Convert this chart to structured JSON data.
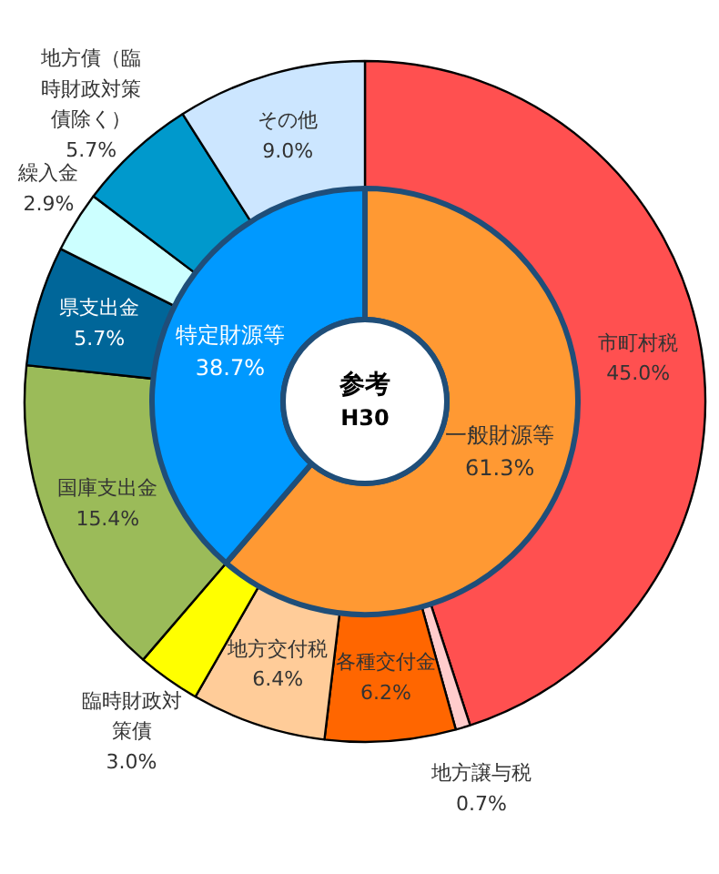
{
  "chart_data": {
    "type": "donut",
    "annotations": [
      "参考",
      "H30"
    ],
    "categories": [
      "市町村税",
      "地方譲与税",
      "各種交付金",
      "地方交付税",
      "臨時財政対策債",
      "国庫支出金",
      "県支出金",
      "繰入金",
      "地方債（臨時財政対策債除く）",
      "その他"
    ],
    "series": [
      {
        "values": [
          45.0,
          0.7,
          6.2,
          6.4,
          3.0,
          15.4,
          5.7,
          2.9,
          5.7,
          9.0
        ],
        "colors": [
          "#ff5050",
          "#ffcccc",
          "#ff6600",
          "#ffcc99",
          "#ffff00",
          "#9bbb59",
          "#006699",
          "#ccffff",
          "#0099cc",
          "#cce6ff"
        ],
        "value_labels": [
          "45.0%",
          "0.7%",
          "6.2%",
          "6.4%",
          "3.0%",
          "15.4%",
          "5.7%",
          "2.9%",
          "5.7%",
          "9.0%"
        ]
      },
      {
        "values": [
          61.3,
          null,
          null,
          null,
          null,
          38.7,
          null,
          null,
          null,
          null
        ],
        "colors": [
          "#ff9933",
          null,
          null,
          null,
          null,
          "#0099ff",
          null,
          null,
          null,
          null
        ],
        "value_labels": [
          "一般財源等\n61.3%",
          null,
          null,
          null,
          null,
          "特定財源等\n38.7%",
          null,
          null,
          null,
          null
        ]
      }
    ]
  }
}
